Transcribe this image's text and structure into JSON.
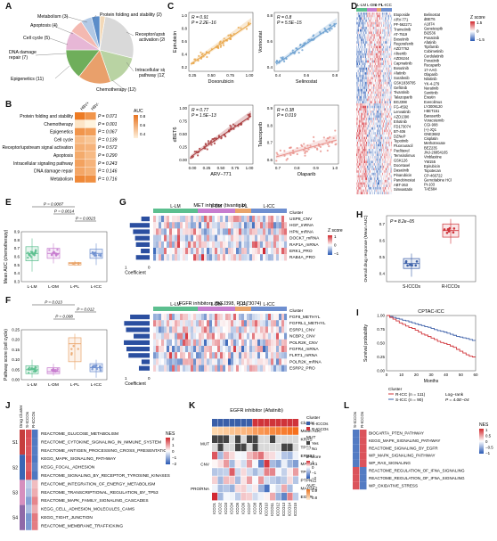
{
  "panels": {
    "A": {
      "label": "A",
      "slices": [
        {
          "name": "Protein folding and stability",
          "count": 2,
          "color": "#f3d9b8"
        },
        {
          "name": "Receptor/upstream signal activation",
          "count": 20,
          "color": "#d9d9d9"
        },
        {
          "name": "Intracellular signaling pathway",
          "count": 12,
          "color": "#b9d3a3"
        },
        {
          "name": "Chemotherapy",
          "count": 12,
          "color": "#e9a06b"
        },
        {
          "name": "Epigenetics",
          "count": 11,
          "color": "#6fae5b"
        },
        {
          "name": "DNA damage repair",
          "count": 7,
          "color": "#e7b7d6"
        },
        {
          "name": "Cell cycle",
          "count": 5,
          "color": "#f4b9b1"
        },
        {
          "name": "Apoptosis",
          "count": 4,
          "color": "#b2c9e5"
        },
        {
          "name": "Metabolism",
          "count": 3,
          "color": "#5b8dc9"
        }
      ],
      "labels_text": {
        "protein": "Protein folding and stability (2)",
        "metabolism": "Metabolism (3)",
        "apoptosis": "Apoptosis (4)",
        "cellcycle": "Cell cycle (5)",
        "dna1": "DNA damage",
        "dna2": "repair (7)",
        "epi": "Epigenetics (11)",
        "chemo": "Chemotherapy (12)",
        "intra1": "Intracellular signaling",
        "intra2": "pathway (12)",
        "rec1": "Receptor/upstream signal",
        "rec2": "activation (20)"
      }
    },
    "B": {
      "label": "B",
      "col_headers": [
        "HBV+",
        "HBV-"
      ],
      "legend_title": "AUC",
      "legend_ticks": [
        "0.8",
        "0.6",
        "0.4"
      ],
      "rows": [
        {
          "name": "Protein folding and stability",
          "p": "P = 0.071"
        },
        {
          "name": "Chemotherapy",
          "p": "P = 0.001"
        },
        {
          "name": "Epigenetics",
          "p": "P = 0.067"
        },
        {
          "name": "Cell cycle",
          "p": "P = 0.139"
        },
        {
          "name": "Receptor/upstream signal activation",
          "p": "P = 0.572"
        },
        {
          "name": "Apoptosis",
          "p": "P = 0.290"
        },
        {
          "name": "Intracellular signaling pathway",
          "p": "P = 0.243"
        },
        {
          "name": "DNA damage repair",
          "p": "P = 0.146"
        },
        {
          "name": "Metabolism",
          "p": "P = 0.716"
        }
      ]
    },
    "C": {
      "label": "C",
      "plots": [
        {
          "xlabel": "Doxorubicin",
          "ylabel": "Epirubicin",
          "r": "R = 0.91",
          "p": "P = 2.2E−16",
          "xticks": [
            "0.25",
            "0.50",
            "0.75",
            "1.00"
          ],
          "yticks": [
            "0.2",
            "0.4",
            "0.6",
            "0.8",
            "1.0"
          ],
          "color": "#e8a84d"
        },
        {
          "xlabel": "Selinostat",
          "ylabel": "Vorinostat",
          "r": "R = 0.8",
          "p": "P = 5.5E−15",
          "xticks": [
            "0.4",
            "0.6",
            "0.8"
          ],
          "yticks": [
            "0.4",
            "0.6",
            "0.8"
          ],
          "color": "#6a9fd0"
        },
        {
          "xlabel": "ARV−771",
          "ylabel": "dBET6",
          "r": "R = 0.77",
          "p": "P = 1.5E−13",
          "xticks": [
            "0.00",
            "0.25",
            "0.50",
            "0.75",
            "1.00"
          ],
          "yticks": [
            "0.00",
            "0.25",
            "0.50",
            "0.75",
            "1.00"
          ],
          "color": "#a8383a"
        },
        {
          "xlabel": "Olaparib",
          "ylabel": "Talazoparib",
          "r": "R = 0.38",
          "p": "P = 0.019",
          "xticks": [
            "0.7",
            "0.8",
            "0.9",
            "1.0"
          ],
          "yticks": [
            "0.6",
            "0.7",
            "0.8",
            "0.9"
          ],
          "color": "#e8918b"
        }
      ]
    },
    "D": {
      "label": "D",
      "clusters": [
        "L-LM",
        "L-DM",
        "L-PL",
        "L-ICC"
      ],
      "legend_title": "Z score",
      "legend_ticks": [
        "1.5",
        "0",
        "−1.5"
      ],
      "drugs_left": [
        "Etoposide",
        "ARV-771",
        "PF-562271",
        "Trametinib",
        "AT-7519",
        "Bosutinib",
        "Regorafenib",
        "AZD7762",
        "Alisertib",
        "AZD6244",
        "Capmatinib",
        "Bosutinib",
        "Afatinib",
        "Sorafenib",
        "GSK1838705",
        "Gefitinib",
        "Tivantinib",
        "Talazoparib",
        "BGJ398",
        "FG-4592",
        "Lenvatinib",
        "AZD1390",
        "Erlotinib",
        "FD173074",
        "BT-406",
        "DZNeP",
        "Tepotinib",
        "Fluorouracil",
        "Paclitaxel",
        "Temsirolimus",
        "GSK126",
        "Docetaxel",
        "Dasatinib",
        "Pinarubicin",
        "Panobinostat",
        "ABT-263",
        "Simvastatin"
      ],
      "drugs_right": [
        "Belinostat",
        "dBET6",
        "A1874",
        "Ganetespib",
        "BI2536",
        "Ponatinib",
        "Afatinib",
        "Tipifarnib",
        "Cobimetinib",
        "Cerdulatinib",
        "Ponatinib",
        "Rucaparib",
        "17-AAG",
        "Olaparib",
        "Nilotinib",
        "YK-4-279",
        "Neratinib",
        "Sunitinib",
        "Erastin",
        "Everolimus",
        "LY3009120",
        "I-BET151",
        "Barasertib",
        "Voracstemib",
        "CGI-908",
        "(+)-JQ1",
        "GNE3682",
        "Cisplatin",
        "Methotrexate",
        "BEZ235",
        "JNJ-26854165",
        "Vinblastine",
        "YM155",
        "Epirubicin",
        "Topotecan",
        "CP-466722",
        "Gemcitabine HCl",
        "Pt-103",
        "TAE684"
      ]
    },
    "E": {
      "label": "E",
      "ylabel": "Mean AUC (chemotherapy)",
      "groups": [
        "L-LM",
        "L-DM",
        "L-PL",
        "L-ICC"
      ],
      "colors": [
        "#5cbf8f",
        "#c77dcf",
        "#e9a46a",
        "#6e8fd0"
      ],
      "yticks": [
        "0.9",
        "0.8",
        "0.7",
        "0.6",
        "0.5",
        "0.4",
        "0.3"
      ],
      "pvalues": [
        "P = 0.0087",
        "P = 0.0014",
        "P = 0.0023"
      ]
    },
    "F": {
      "label": "F",
      "ylabel": "Pathway score (cell cycle)",
      "groups": [
        "L-LM",
        "L-DM",
        "L-PL",
        "L-ICC"
      ],
      "colors": [
        "#5cbf8f",
        "#c77dcf",
        "#e9a46a",
        "#6e8fd0"
      ],
      "yticks": [
        "0.25",
        "0.20",
        "0.15",
        "0.10",
        "0.05",
        "0.00"
      ],
      "pvalues": [
        "P = 0.013",
        "P = 0.012",
        "P = 0.008"
      ]
    },
    "G": {
      "label": "G",
      "top_title": "MET inhibitor (tivantinib)",
      "bottom_title": "FGFR inhibitors (BGJ398, PD173074)",
      "clusters": [
        "L-LM",
        "L-DM",
        "L-PL",
        "L-ICC"
      ],
      "top_rows": [
        "Cluster",
        "USP8_CNV",
        "HGF_mRNA",
        "HPN_mRNA",
        "DOCK7_mRNA",
        "RAP1A_mRNA",
        "ERK1_PRO",
        "RAB4A_PRO"
      ],
      "bottom_rows": [
        "Cluster",
        "FGF8_METHYL",
        "FGFRL1_METHYL",
        "ESRP1_CNV",
        "NCBP2_CNV",
        "POLR2K_CNV",
        "FGFR4_mRNA",
        "FLRT1_mRNA",
        "POLR2K_mRNA",
        "ESRP2_PRO"
      ],
      "legend_title": "Z score",
      "legend_ticks": [
        "1",
        "0",
        "−1"
      ],
      "coef_label": "Coefficient",
      "coef_ticks": [
        "1",
        "0"
      ]
    },
    "H": {
      "label": "H",
      "p": "P = 8.2e−05",
      "ylabel": "Overall drug response (Mean AUC)",
      "groups": [
        "S-ICCOs",
        "R-ICCOs"
      ],
      "yticks": [
        "0.7",
        "0.6",
        "0.5",
        "0.4"
      ]
    },
    "I": {
      "label": "I",
      "title": "CPTAC-ICC",
      "ylabel": "Survival probability",
      "xlabel": "Months",
      "xticks": [
        "0",
        "10",
        "20",
        "30",
        "40",
        "50",
        "60"
      ],
      "yticks": [
        "1.00",
        "0.75",
        "0.50",
        "0.25",
        "0.00"
      ],
      "legend_title": "Cluster",
      "legend_r": "R-ICC (n = 111)",
      "legend_s": "S-ICC (n = 90)",
      "logrank": "Log−rank",
      "logrank_p": "P = 4.0E−04"
    },
    "J": {
      "label": "J",
      "col_headers": [
        "Drug Cluster",
        "S-ICCOs",
        "R-ICCOs"
      ],
      "clusters": [
        "S1",
        "S2",
        "S3",
        "S4"
      ],
      "rows": [
        "REACTOME_GLUCOSE_METABOLISM",
        "REACTOME_CYTOKINE_SIGNALING_IN_IMMUNE_SYSTEM",
        "REACTOME_ANTIGEN_PROCESSING_CROSS_PRESENTATION",
        "KEGG_MAPK_SIGNALING_PATHWAY",
        "KEGG_FOCAL_ADHESION",
        "REACTOME_SIGNALING_BY_RECEPTOR_TYROSINE_KINASES",
        "REACTOME_INTEGRATION_OF_ENERGY_METABOLISM",
        "REACTOME_TRANSCRIPTIONAL_REGULATION_BY_TP53",
        "REACTOME_MAPK_FAMILY_SIGNALING_CASCADES",
        "KEGG_CELL_ADHESION_MOLECULES_CAMS",
        "KEGG_TIGHT_JUNCTION",
        "REACTOME_MEMBRANE_TRAFFICKING"
      ],
      "legend_title": "NES",
      "legend_ticks": [
        "2",
        "1",
        "0",
        "−1",
        "−2"
      ]
    },
    "K": {
      "label": "K",
      "title": "EGFR inhibitor (Afatinib)",
      "group_labels": [
        "MUT",
        "CNV",
        "PRO/RNA"
      ],
      "rows": [
        "Cluster",
        "Mean AUC",
        "KRAS",
        "TP53",
        "ERBB2",
        "MAP3K1",
        "TP53",
        "PTPN11",
        "MAP3K2",
        "EGFR"
      ],
      "legend_cluster_title": "Cluster",
      "legend_cluster": [
        "S-ICCOs",
        "R-ICCOs"
      ],
      "legend_mut_title": "MUT",
      "legend_mut": [
        "Yes",
        "No"
      ],
      "legend_z_title": "Z-score",
      "legend_z": [
        "1",
        "0",
        "−1",
        "−2"
      ],
      "legend_auc_title": "AUC",
      "legend_auc": [
        "0.9",
        "0.8"
      ],
      "samples": [
        "ICCO1",
        "ICCO2",
        "ICCO3",
        "ICCO4",
        "ICCO5",
        "ICCO6",
        "ICCO7",
        "ICCO8",
        "ICCO9",
        "ICCO10",
        "ICCO11",
        "ICCO12",
        "ICCO13",
        "ICCO14",
        "ICCO15"
      ]
    },
    "L": {
      "label": "L",
      "col_headers": [
        "S-ICCOs",
        "R-ICCOs"
      ],
      "rows": [
        "BIOCARTA_PTEN_PATHWAY",
        "KEGG_MAPK_SIGNALING_PATHWAY",
        "REACTOME_SIGNALING_BY_EGFR",
        "WP_MAPK_SIGNALING_PATHWAY",
        "WP_RAS_SIGNALING",
        "REACTOME_REGULATION_OF_IFNA_SIGNALING",
        "REACTOME_REGULATION_OF_IFNA_SIGNALING",
        "WP_OXIDATIVE_STRESS"
      ],
      "legend_title": "NES",
      "legend_ticks": [
        "1",
        "0.5",
        "0",
        "−0.5",
        "−1"
      ]
    }
  }
}
